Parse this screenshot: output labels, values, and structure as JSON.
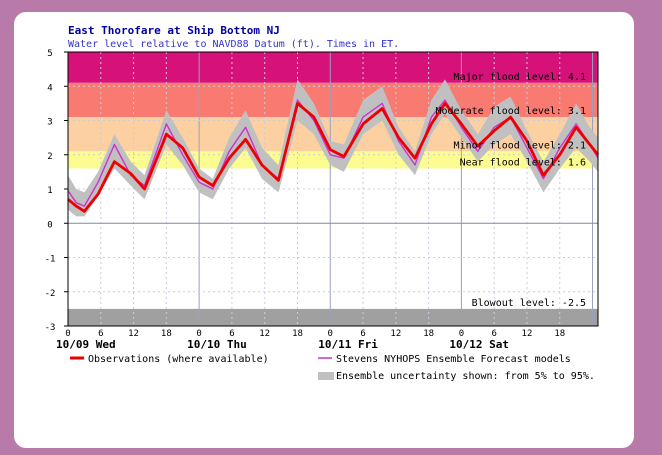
{
  "chart_data": {
    "type": "line",
    "title": "East Thorofare at Ship Bottom NJ",
    "subtitle": "Water level relative to NAVD88 Datum (ft). Times in ET.",
    "ylim": [
      -3,
      5
    ],
    "yticks": [
      -3,
      -2,
      -1,
      0,
      1,
      2,
      3,
      4,
      5
    ],
    "xlim_hours": [
      0,
      97
    ],
    "hour_ticks": [
      "0",
      "6",
      "12",
      "18",
      "0",
      "6",
      "12",
      "18",
      "0",
      "6",
      "12",
      "18",
      "0",
      "6",
      "12",
      "18"
    ],
    "date_labels": [
      {
        "at_hour": 0,
        "label": "10/09 Wed"
      },
      {
        "at_hour": 24,
        "label": "10/10 Thu"
      },
      {
        "at_hour": 48,
        "label": "10/11 Fri"
      },
      {
        "at_hour": 72,
        "label": "10/12 Sat"
      }
    ],
    "flood_levels": [
      {
        "name": "Major flood level: 4.1",
        "value": 4.1,
        "color": "#d6127a",
        "band": [
          4.1,
          5
        ]
      },
      {
        "name": "Moderate flood level: 3.1",
        "value": 3.1,
        "color": "#f87a70",
        "band": [
          3.1,
          4.1
        ]
      },
      {
        "name": "Minor flood level: 2.1",
        "value": 2.1,
        "color": "#fcd0a0",
        "band": [
          2.1,
          3.1
        ]
      },
      {
        "name": "Near flood level: 1.6",
        "value": 1.6,
        "color": "#fcfc90",
        "band": [
          1.6,
          2.1
        ]
      },
      {
        "name": "Blowout level: -2.5",
        "value": -2.5,
        "color": "#a0a0a0",
        "band": [
          -3,
          -2.5
        ]
      }
    ],
    "series": [
      {
        "name": "Observations (where available)",
        "color": "#ee0000",
        "x": [
          0,
          1.5,
          3,
          5.5,
          8.5,
          11.5,
          14,
          18,
          21,
          24,
          26.5,
          29.5,
          32.5,
          35.5,
          38.5,
          42,
          45,
          48,
          50.5,
          54,
          57.5,
          60.5,
          63.5,
          66.5,
          69,
          72,
          75,
          78,
          81,
          84,
          87,
          90,
          93,
          95.5,
          97
        ],
        "values": [
          0.7,
          0.5,
          0.35,
          0.85,
          1.8,
          1.45,
          1.0,
          2.6,
          2.2,
          1.35,
          1.1,
          1.9,
          2.45,
          1.7,
          1.25,
          3.5,
          3.1,
          2.15,
          1.95,
          2.9,
          3.35,
          2.5,
          1.9,
          2.9,
          3.5,
          2.9,
          2.25,
          2.7,
          3.1,
          2.4,
          1.4,
          2.0,
          2.8,
          2.3,
          2.0
        ]
      },
      {
        "name": "Stevens NYHOPS Ensemble Forecast models",
        "color": "#cc33cc",
        "x": [
          0,
          1.5,
          3,
          5.5,
          8.5,
          11.5,
          14,
          18,
          21,
          24,
          26.5,
          29.5,
          32.5,
          35.5,
          38.5,
          42,
          45,
          48,
          50.5,
          54,
          57.5,
          60.5,
          63.5,
          66.5,
          69,
          72,
          75,
          78,
          81,
          84,
          87,
          90,
          93,
          95.5,
          97
        ],
        "values": [
          0.95,
          0.6,
          0.5,
          1.2,
          2.3,
          1.4,
          1.1,
          2.9,
          2.0,
          1.2,
          1.0,
          2.1,
          2.8,
          1.7,
          1.3,
          3.6,
          3.0,
          2.0,
          1.9,
          3.1,
          3.5,
          2.4,
          1.7,
          3.1,
          3.6,
          2.8,
          2.1,
          2.8,
          3.1,
          2.2,
          1.3,
          2.2,
          2.9,
          2.3,
          1.9
        ]
      },
      {
        "name": "Ensemble uncertainty shown: from 5% to 95%.",
        "color": "#c0c0c0",
        "x": [
          0,
          1.5,
          3,
          5.5,
          8.5,
          11.5,
          14,
          18,
          21,
          24,
          26.5,
          29.5,
          32.5,
          35.5,
          38.5,
          42,
          45,
          48,
          50.5,
          54,
          57.5,
          60.5,
          63.5,
          66.5,
          69,
          72,
          75,
          78,
          81,
          84,
          87,
          90,
          93,
          95.5,
          97
        ],
        "upper": [
          1.4,
          1.0,
          0.9,
          1.5,
          2.6,
          1.8,
          1.4,
          3.3,
          2.5,
          1.6,
          1.3,
          2.5,
          3.3,
          2.2,
          1.7,
          4.2,
          3.5,
          2.4,
          2.3,
          3.6,
          4.0,
          2.8,
          2.1,
          3.6,
          4.2,
          3.3,
          2.6,
          3.4,
          3.7,
          2.7,
          1.8,
          2.6,
          3.5,
          2.8,
          2.5
        ],
        "lower": [
          0.4,
          0.2,
          0.2,
          0.8,
          1.6,
          1.1,
          0.7,
          2.3,
          1.7,
          0.9,
          0.7,
          1.6,
          2.2,
          1.3,
          0.9,
          3.0,
          2.6,
          1.7,
          1.5,
          2.6,
          3.0,
          2.0,
          1.4,
          2.6,
          3.2,
          2.5,
          1.8,
          2.3,
          2.6,
          1.8,
          0.9,
          1.6,
          2.2,
          1.8,
          1.5
        ]
      }
    ],
    "legend": {
      "observations": "Observations (where available)",
      "forecast": "Stevens NYHOPS Ensemble Forecast models",
      "uncertainty": "Ensemble uncertainty shown: from 5% to 95%."
    },
    "grid": true
  }
}
